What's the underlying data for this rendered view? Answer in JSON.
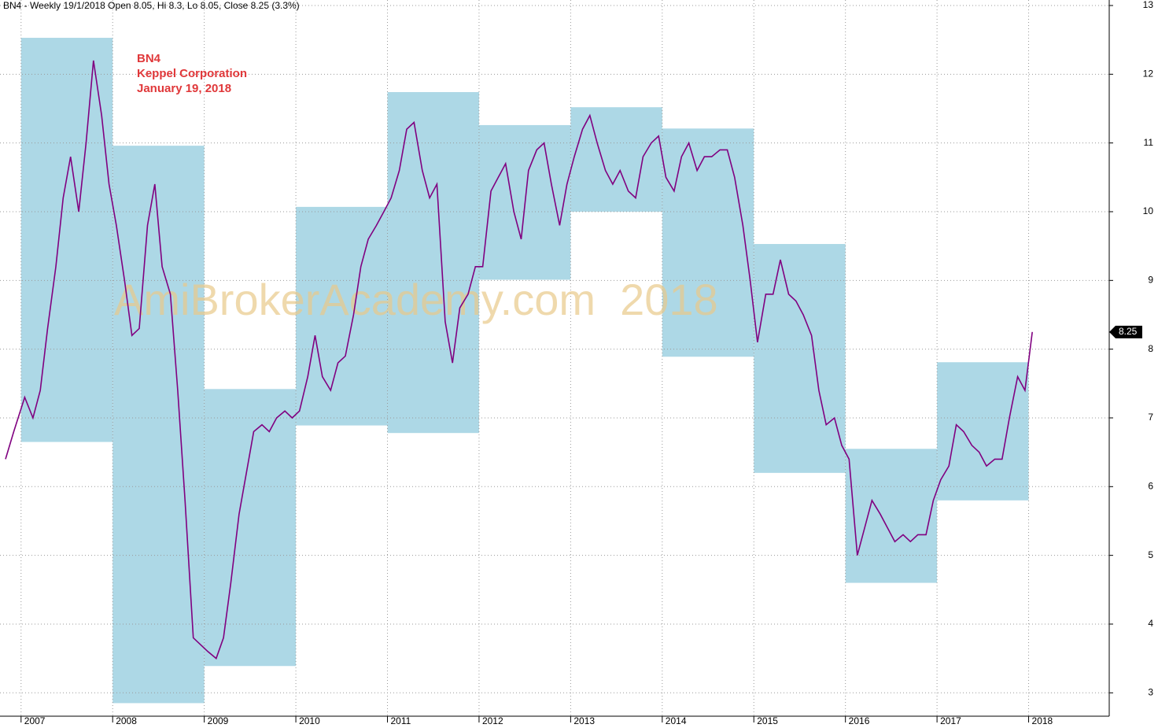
{
  "chart_data": {
    "type": "line",
    "title": "BN4 - Weekly 19/1/2018 Open 8.05, Hi 8.3, Lo 8.05, Close 8.25 (3.3%)",
    "annotations": [
      "BN4",
      "Keppel Corporation",
      "January 19, 2018"
    ],
    "watermark": "AmiBrokerAcademy.com  2018",
    "color": "#800080",
    "x": [
      2006.83,
      2006.92,
      2007.04,
      2007.13,
      2007.21,
      2007.29,
      2007.38,
      2007.46,
      2007.54,
      2007.63,
      2007.71,
      2007.79,
      2007.88,
      2007.96,
      2008.04,
      2008.13,
      2008.21,
      2008.29,
      2008.38,
      2008.46,
      2008.54,
      2008.63,
      2008.71,
      2008.79,
      2008.88,
      2008.96,
      2009.04,
      2009.13,
      2009.21,
      2009.29,
      2009.38,
      2009.46,
      2009.54,
      2009.63,
      2009.71,
      2009.79,
      2009.88,
      2009.96,
      2010.04,
      2010.13,
      2010.21,
      2010.29,
      2010.38,
      2010.46,
      2010.54,
      2010.63,
      2010.71,
      2010.79,
      2010.88,
      2010.96,
      2011.04,
      2011.13,
      2011.21,
      2011.29,
      2011.38,
      2011.46,
      2011.54,
      2011.63,
      2011.71,
      2011.79,
      2011.88,
      2011.96,
      2012.04,
      2012.13,
      2012.21,
      2012.29,
      2012.38,
      2012.46,
      2012.54,
      2012.63,
      2012.71,
      2012.79,
      2012.88,
      2012.96,
      2013.04,
      2013.13,
      2013.21,
      2013.29,
      2013.38,
      2013.46,
      2013.54,
      2013.63,
      2013.71,
      2013.79,
      2013.88,
      2013.96,
      2014.04,
      2014.13,
      2014.21,
      2014.29,
      2014.38,
      2014.46,
      2014.54,
      2014.63,
      2014.71,
      2014.79,
      2014.88,
      2014.96,
      2015.04,
      2015.13,
      2015.21,
      2015.29,
      2015.38,
      2015.46,
      2015.54,
      2015.63,
      2015.71,
      2015.79,
      2015.88,
      2015.96,
      2016.04,
      2016.13,
      2016.21,
      2016.29,
      2016.38,
      2016.46,
      2016.54,
      2016.63,
      2016.71,
      2016.79,
      2016.88,
      2016.96,
      2017.04,
      2017.13,
      2017.21,
      2017.29,
      2017.38,
      2017.46,
      2017.54,
      2017.63,
      2017.71,
      2017.79,
      2017.88,
      2017.96,
      2018.04
    ],
    "values": [
      6.4,
      6.8,
      7.3,
      7.0,
      7.4,
      8.3,
      9.2,
      10.2,
      10.8,
      10.0,
      11.0,
      12.2,
      11.4,
      10.4,
      9.8,
      9.0,
      8.2,
      8.3,
      9.8,
      10.4,
      9.2,
      8.8,
      7.4,
      5.8,
      3.8,
      3.7,
      3.6,
      3.5,
      3.8,
      4.6,
      5.6,
      6.2,
      6.8,
      6.9,
      6.8,
      7.0,
      7.1,
      7.0,
      7.1,
      7.6,
      8.2,
      7.6,
      7.4,
      7.8,
      7.9,
      8.5,
      9.2,
      9.6,
      9.8,
      10.0,
      10.2,
      10.6,
      11.2,
      11.3,
      10.6,
      10.2,
      10.4,
      8.4,
      7.8,
      8.6,
      8.8,
      9.2,
      9.2,
      10.3,
      10.5,
      10.7,
      10.0,
      9.6,
      10.6,
      10.9,
      11.0,
      10.4,
      9.8,
      10.4,
      10.8,
      11.2,
      11.4,
      11.0,
      10.6,
      10.4,
      10.6,
      10.3,
      10.2,
      10.8,
      11.0,
      11.1,
      10.5,
      10.3,
      10.8,
      11.0,
      10.6,
      10.8,
      10.8,
      10.9,
      10.9,
      10.5,
      9.8,
      9.0,
      8.1,
      8.8,
      8.8,
      9.3,
      8.8,
      8.7,
      8.5,
      8.2,
      7.4,
      6.9,
      7.0,
      6.6,
      6.4,
      5.0,
      5.4,
      5.8,
      5.6,
      5.4,
      5.2,
      5.3,
      5.2,
      5.3,
      5.3,
      5.8,
      6.1,
      6.3,
      6.9,
      6.8,
      6.6,
      6.5,
      6.3,
      6.4,
      6.4,
      7.0,
      7.6,
      7.4,
      8.25
    ],
    "boxes": {
      "color": "#add8e6",
      "high": [
        12.53,
        10.96,
        7.42,
        10.07,
        11.74,
        11.26,
        11.52,
        11.21,
        9.53,
        6.55,
        7.81
      ],
      "low": [
        6.65,
        2.85,
        3.39,
        6.89,
        6.78,
        9.01,
        10.0,
        7.89,
        6.2,
        4.6,
        5.8
      ]
    },
    "xlim": [
      2006.77,
      2018.88
    ],
    "xticks": [
      2007,
      2008,
      2009,
      2010,
      2011,
      2012,
      2013,
      2014,
      2015,
      2016,
      2017,
      2018
    ],
    "ylim": [
      2.66,
      13.08
    ],
    "yticks": [
      3,
      4,
      5,
      6,
      7,
      8,
      9,
      10,
      11,
      12,
      13
    ],
    "grid": true
  }
}
